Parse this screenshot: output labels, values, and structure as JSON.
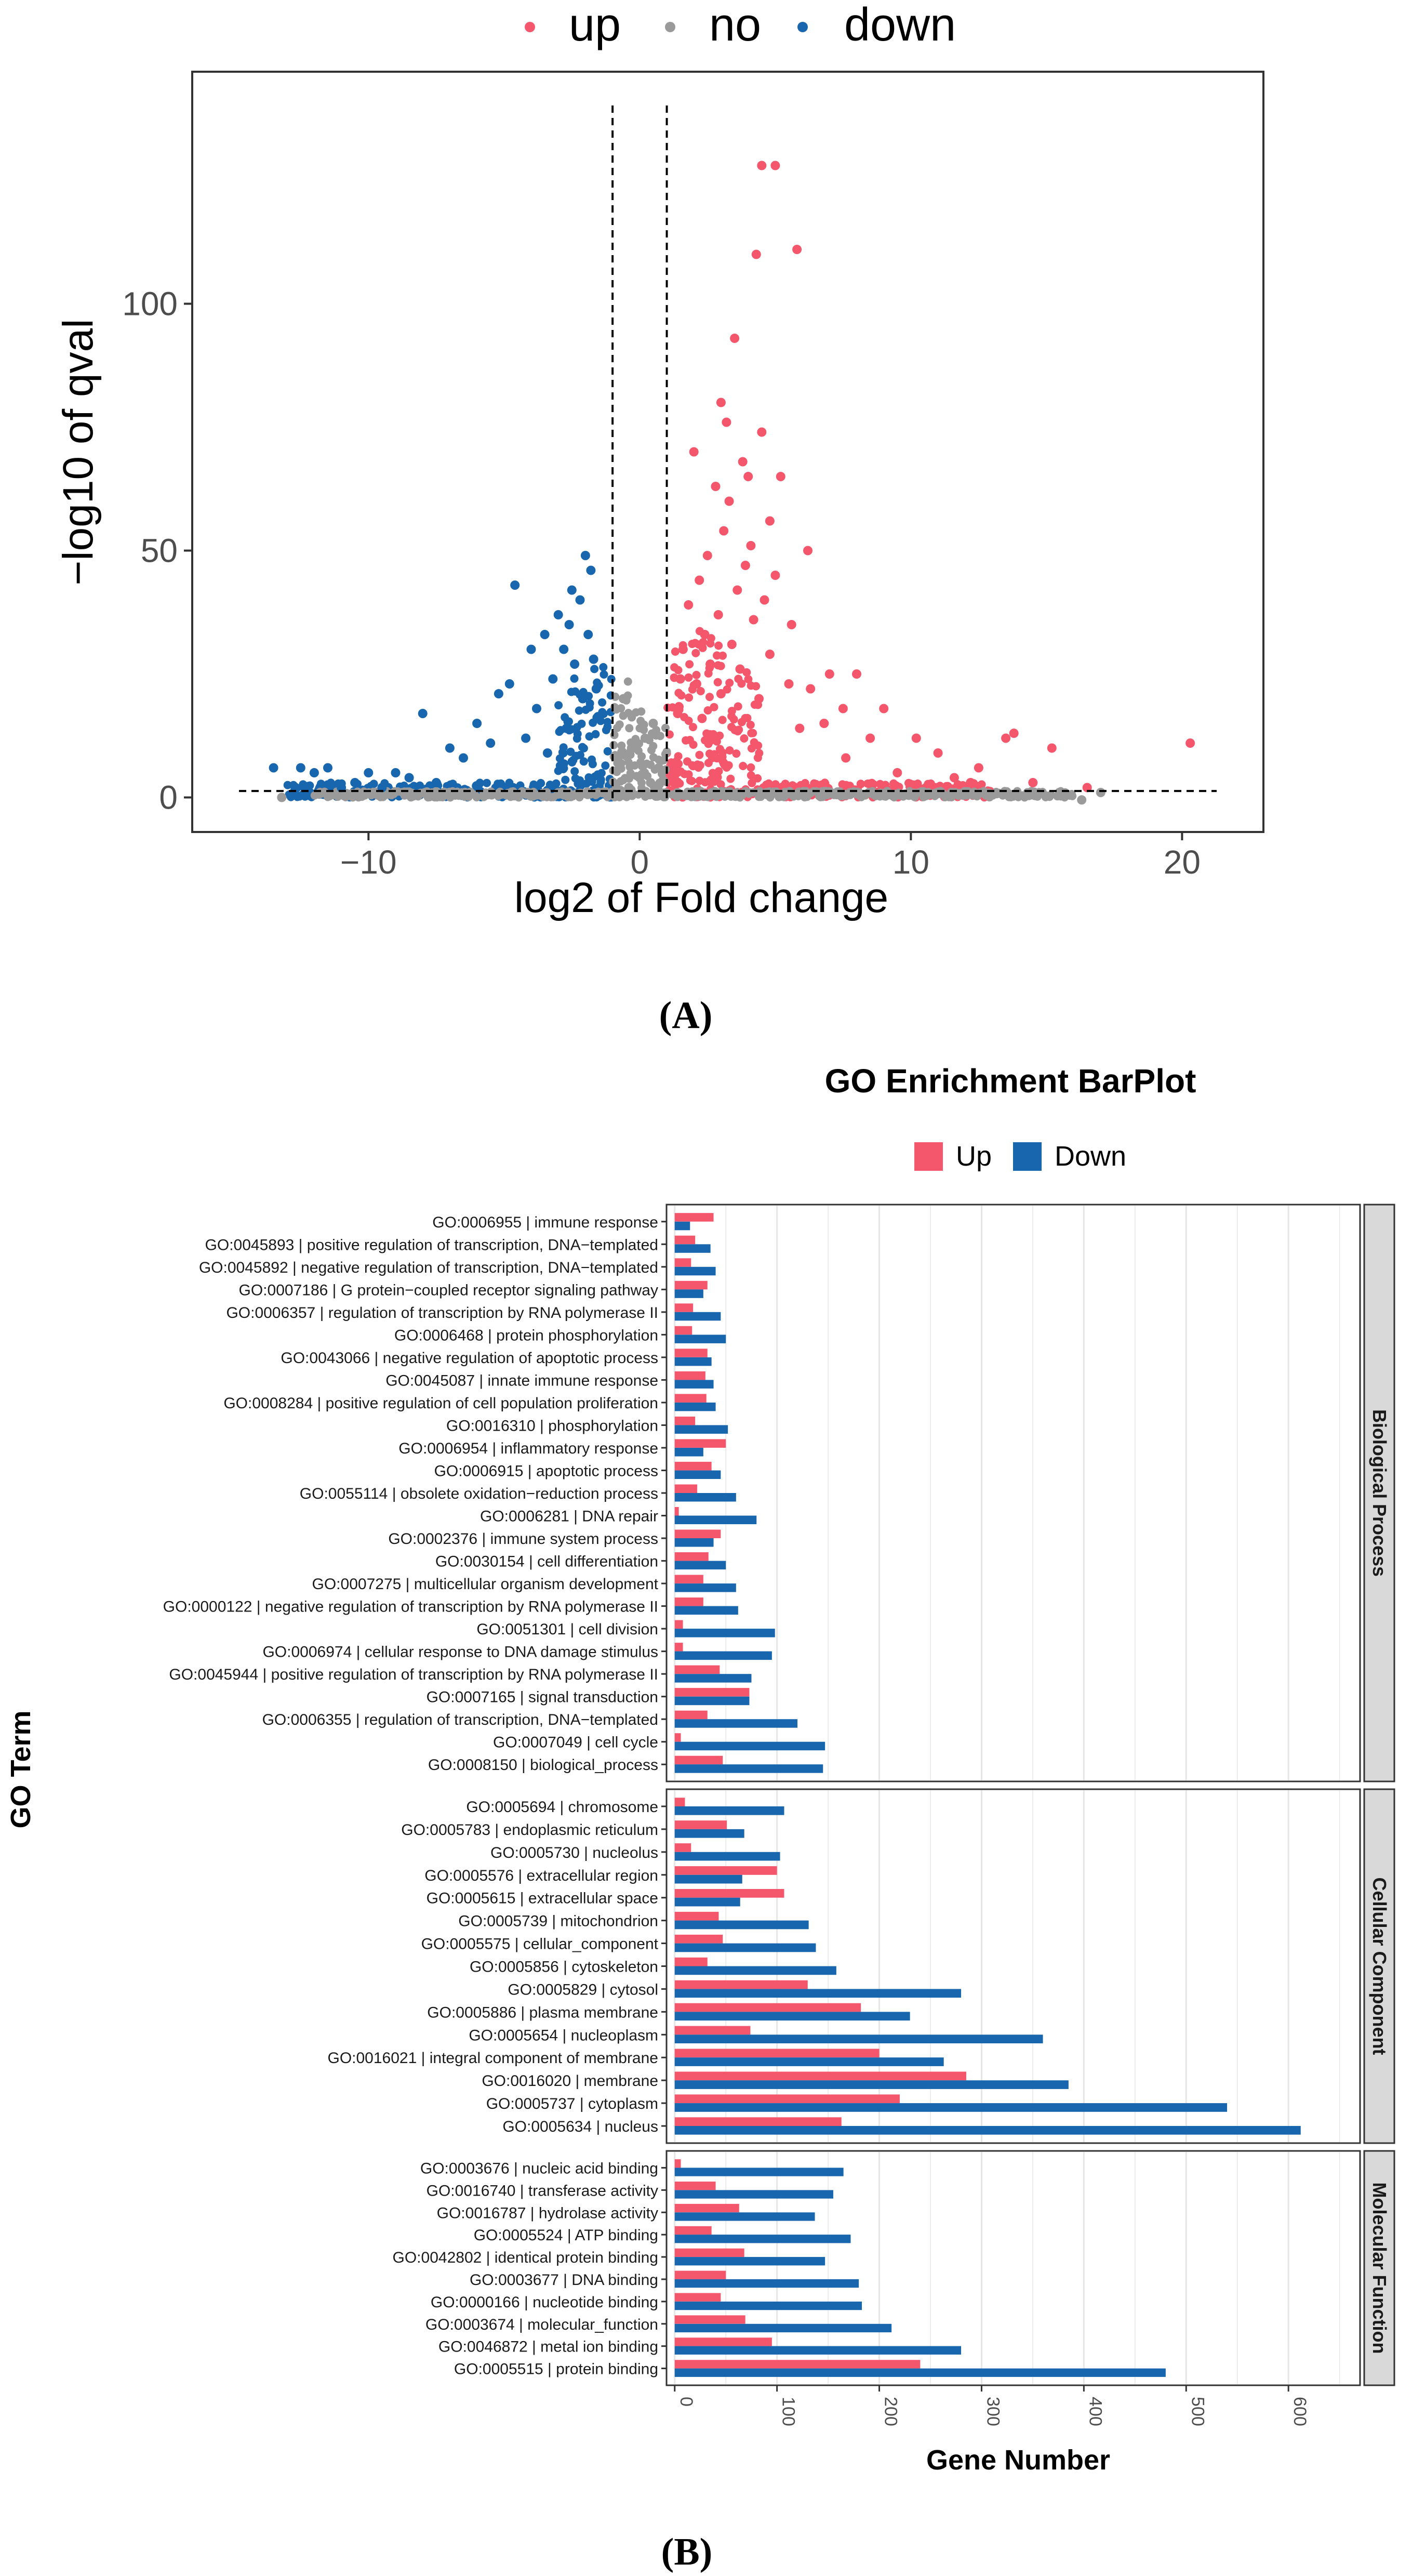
{
  "colors": {
    "up": "#F4566B",
    "no": "#9A9A9A",
    "down": "#1866AE",
    "panel_border": "#333333",
    "grid": "#E6E6E6",
    "strip_fill": "#D9D9D9"
  },
  "chart_data": [
    {
      "id": "A",
      "type": "scatter",
      "panel_label": "(A)",
      "title": "",
      "xlabel": "log2 of Fold change",
      "ylabel": "−log10 of qval",
      "xlim": [
        -16.5,
        23
      ],
      "ylim": [
        -7,
        147
      ],
      "x_ticks": [
        {
          "value": -10,
          "label": "−10"
        },
        {
          "value": 0,
          "label": "0"
        },
        {
          "value": 10,
          "label": "10"
        },
        {
          "value": 20,
          "label": "20"
        }
      ],
      "y_ticks": [
        {
          "value": 0,
          "label": "0"
        },
        {
          "value": 50,
          "label": "50"
        },
        {
          "value": 100,
          "label": "100"
        }
      ],
      "thresholds": {
        "x": [
          -1,
          1
        ],
        "y": [
          1.3
        ]
      },
      "legend": {
        "position": "top",
        "items": [
          {
            "key": "up",
            "label": "up"
          },
          {
            "key": "no",
            "label": "no"
          },
          {
            "key": "down",
            "label": "down"
          }
        ]
      },
      "series": [
        {
          "name": "up",
          "points": [
            [
              4.5,
              128
            ],
            [
              5.0,
              128
            ],
            [
              4.3,
              110
            ],
            [
              5.8,
              111
            ],
            [
              3.5,
              93
            ],
            [
              3.0,
              80
            ],
            [
              3.2,
              76
            ],
            [
              4.5,
              74
            ],
            [
              2.0,
              70
            ],
            [
              3.8,
              68
            ],
            [
              4.0,
              65
            ],
            [
              5.2,
              65
            ],
            [
              2.8,
              63
            ],
            [
              3.3,
              60
            ],
            [
              4.8,
              56
            ],
            [
              3.1,
              54
            ],
            [
              4.1,
              51
            ],
            [
              6.2,
              50
            ],
            [
              2.5,
              49
            ],
            [
              3.9,
              47
            ],
            [
              5.0,
              45
            ],
            [
              2.2,
              44
            ],
            [
              3.6,
              42
            ],
            [
              4.6,
              40
            ],
            [
              1.8,
              39
            ],
            [
              2.9,
              37
            ],
            [
              4.2,
              36
            ],
            [
              5.6,
              35
            ],
            [
              2.4,
              33
            ],
            [
              3.4,
              31
            ],
            [
              1.6,
              30
            ],
            [
              4.8,
              29
            ],
            [
              2.6,
              27
            ],
            [
              3.7,
              26
            ],
            [
              7.0,
              25
            ],
            [
              8.0,
              25
            ],
            [
              1.5,
              24
            ],
            [
              2.1,
              23
            ],
            [
              5.5,
              23
            ],
            [
              6.3,
              22
            ],
            [
              3.0,
              21
            ],
            [
              4.4,
              20
            ],
            [
              7.5,
              18
            ],
            [
              9.0,
              18
            ],
            [
              1.4,
              17
            ],
            [
              2.3,
              16
            ],
            [
              6.8,
              15
            ],
            [
              5.9,
              14
            ],
            [
              8.5,
              12
            ],
            [
              10.2,
              12
            ],
            [
              13.5,
              12
            ],
            [
              13.8,
              13
            ],
            [
              15.2,
              10
            ],
            [
              20.3,
              11
            ],
            [
              11.0,
              9
            ],
            [
              7.6,
              8
            ],
            [
              12.5,
              6
            ],
            [
              9.5,
              5
            ],
            [
              11.6,
              4
            ],
            [
              12.2,
              3
            ],
            [
              14.5,
              3
            ],
            [
              16.5,
              2
            ]
          ]
        },
        {
          "name": "down",
          "points": [
            [
              -2.0,
              49
            ],
            [
              -1.8,
              46
            ],
            [
              -4.6,
              43
            ],
            [
              -2.5,
              42
            ],
            [
              -2.2,
              40
            ],
            [
              -3.0,
              37
            ],
            [
              -2.6,
              35
            ],
            [
              -3.5,
              33
            ],
            [
              -1.9,
              33
            ],
            [
              -2.8,
              30
            ],
            [
              -4.0,
              30
            ],
            [
              -1.7,
              28
            ],
            [
              -2.4,
              27
            ],
            [
              -3.2,
              24
            ],
            [
              -4.8,
              23
            ],
            [
              -1.6,
              22
            ],
            [
              -5.2,
              21
            ],
            [
              -2.1,
              20
            ],
            [
              -3.8,
              18
            ],
            [
              -8.0,
              17
            ],
            [
              -1.5,
              16
            ],
            [
              -6.0,
              15
            ],
            [
              -2.7,
              14
            ],
            [
              -4.2,
              12
            ],
            [
              -5.5,
              11
            ],
            [
              -7.0,
              10
            ],
            [
              -3.4,
              9
            ],
            [
              -6.5,
              8
            ],
            [
              -12.5,
              6
            ],
            [
              -11.5,
              6
            ],
            [
              -10.0,
              5
            ],
            [
              -9.0,
              5
            ],
            [
              -13.5,
              6
            ],
            [
              -12.0,
              5
            ],
            [
              -8.5,
              4
            ],
            [
              -10.5,
              3
            ],
            [
              -7.5,
              3
            ],
            [
              -9.5,
              2
            ],
            [
              -11.0,
              2
            ]
          ]
        },
        {
          "name": "no",
          "points": [
            [
              -0.6,
              20
            ],
            [
              0.5,
              15
            ],
            [
              -0.3,
              10
            ],
            [
              0.2,
              12
            ],
            [
              -0.8,
              8
            ],
            [
              0.7,
              6
            ],
            [
              0.0,
              4
            ],
            [
              -0.4,
              2
            ],
            [
              0.4,
              3
            ],
            [
              15.5,
              1
            ],
            [
              16.3,
              -0.5
            ],
            [
              17.0,
              1
            ],
            [
              -13.2,
              0
            ]
          ]
        }
      ],
      "density_bands": [
        {
          "series": "up",
          "x_range": [
            1.0,
            4.5
          ],
          "y_max": 35
        },
        {
          "series": "down",
          "x_range": [
            -3.0,
            -1.0
          ],
          "y_max": 30
        },
        {
          "series": "up",
          "x_range": [
            4.5,
            13.0
          ],
          "y_max": 3
        },
        {
          "series": "down",
          "x_range": [
            -13.0,
            -3.0
          ],
          "y_max": 3
        },
        {
          "series": "no",
          "x_range": [
            -12.0,
            16.0
          ],
          "y_max": 1.3
        },
        {
          "series": "no",
          "x_range": [
            -1.0,
            1.0
          ],
          "y_max": 25
        }
      ]
    },
    {
      "id": "B",
      "type": "bar",
      "orientation": "horizontal",
      "panel_label": "(B)",
      "title": "GO Enrichment BarPlot",
      "xlabel": "Gene Number",
      "ylabel": "GO Term",
      "xlim": [
        -8,
        670
      ],
      "x_ticks": [
        0,
        100,
        200,
        300,
        400,
        500,
        600
      ],
      "legend": {
        "position": "top",
        "items": [
          {
            "key": "up",
            "label": "Up"
          },
          {
            "key": "down",
            "label": "Down"
          }
        ]
      },
      "facets": [
        {
          "name": "Biological Process",
          "terms": [
            {
              "label": "GO:0006955 | immune response",
              "up": 38,
              "down": 15
            },
            {
              "label": "GO:0045893 | positive regulation of transcription, DNA−templated",
              "up": 20,
              "down": 35
            },
            {
              "label": "GO:0045892 | negative regulation of transcription, DNA−templated",
              "up": 16,
              "down": 40
            },
            {
              "label": "GO:0007186 | G protein−coupled receptor signaling pathway",
              "up": 32,
              "down": 28
            },
            {
              "label": "GO:0006357 | regulation of transcription by RNA polymerase II",
              "up": 18,
              "down": 45
            },
            {
              "label": "GO:0006468 | protein phosphorylation",
              "up": 17,
              "down": 50
            },
            {
              "label": "GO:0043066 | negative regulation of apoptotic process",
              "up": 32,
              "down": 36
            },
            {
              "label": "GO:0045087 | innate immune response",
              "up": 30,
              "down": 38
            },
            {
              "label": "GO:0008284 | positive regulation of cell population proliferation",
              "up": 31,
              "down": 40
            },
            {
              "label": "GO:0016310 | phosphorylation",
              "up": 20,
              "down": 52
            },
            {
              "label": "GO:0006954 | inflammatory response",
              "up": 50,
              "down": 28
            },
            {
              "label": "GO:0006915 | apoptotic process",
              "up": 36,
              "down": 45
            },
            {
              "label": "GO:0055114 | obsolete oxidation−reduction process",
              "up": 22,
              "down": 60
            },
            {
              "label": "GO:0006281 | DNA repair",
              "up": 4,
              "down": 80
            },
            {
              "label": "GO:0002376 | immune system process",
              "up": 45,
              "down": 38
            },
            {
              "label": "GO:0030154 | cell differentiation",
              "up": 33,
              "down": 50
            },
            {
              "label": "GO:0007275 | multicellular organism development",
              "up": 28,
              "down": 60
            },
            {
              "label": "GO:0000122 | negative regulation of transcription by RNA polymerase II",
              "up": 28,
              "down": 62
            },
            {
              "label": "GO:0051301 | cell division",
              "up": 8,
              "down": 98
            },
            {
              "label": "GO:0006974 | cellular response to DNA damage stimulus",
              "up": 8,
              "down": 95
            },
            {
              "label": "GO:0045944 | positive regulation of transcription by RNA polymerase II",
              "up": 44,
              "down": 75
            },
            {
              "label": "GO:0007165 | signal transduction",
              "up": 73,
              "down": 73
            },
            {
              "label": "GO:0006355 | regulation of transcription, DNA−templated",
              "up": 32,
              "down": 120
            },
            {
              "label": "GO:0007049 | cell cycle",
              "up": 6,
              "down": 147
            },
            {
              "label": "GO:0008150 | biological_process",
              "up": 47,
              "down": 145
            }
          ]
        },
        {
          "name": "Cellular Component",
          "terms": [
            {
              "label": "GO:0005694 | chromosome",
              "up": 10,
              "down": 107
            },
            {
              "label": "GO:0005783 | endoplasmic reticulum",
              "up": 51,
              "down": 68
            },
            {
              "label": "GO:0005730 | nucleolus",
              "up": 16,
              "down": 103
            },
            {
              "label": "GO:0005576 | extracellular region",
              "up": 100,
              "down": 66
            },
            {
              "label": "GO:0005615 | extracellular space",
              "up": 107,
              "down": 64
            },
            {
              "label": "GO:0005739 | mitochondrion",
              "up": 43,
              "down": 131
            },
            {
              "label": "GO:0005575 | cellular_component",
              "up": 47,
              "down": 138
            },
            {
              "label": "GO:0005856 | cytoskeleton",
              "up": 32,
              "down": 158
            },
            {
              "label": "GO:0005829 | cytosol",
              "up": 130,
              "down": 280
            },
            {
              "label": "GO:0005886 | plasma membrane",
              "up": 182,
              "down": 230
            },
            {
              "label": "GO:0005654 | nucleoplasm",
              "up": 74,
              "down": 360
            },
            {
              "label": "GO:0016021 | integral component of membrane",
              "up": 200,
              "down": 263
            },
            {
              "label": "GO:0016020 | membrane",
              "up": 285,
              "down": 385
            },
            {
              "label": "GO:0005737 | cytoplasm",
              "up": 220,
              "down": 540
            },
            {
              "label": "GO:0005634 | nucleus",
              "up": 163,
              "down": 612
            }
          ]
        },
        {
          "name": "Molecular Function",
          "terms": [
            {
              "label": "GO:0003676 | nucleic acid binding",
              "up": 6,
              "down": 165
            },
            {
              "label": "GO:0016740 | transferase activity",
              "up": 40,
              "down": 155
            },
            {
              "label": "GO:0016787 | hydrolase activity",
              "up": 63,
              "down": 137
            },
            {
              "label": "GO:0005524 | ATP binding",
              "up": 36,
              "down": 172
            },
            {
              "label": "GO:0042802 | identical protein binding",
              "up": 68,
              "down": 147
            },
            {
              "label": "GO:0003677 | DNA binding",
              "up": 50,
              "down": 180
            },
            {
              "label": "GO:0000166 | nucleotide binding",
              "up": 45,
              "down": 183
            },
            {
              "label": "GO:0003674 | molecular_function",
              "up": 69,
              "down": 212
            },
            {
              "label": "GO:0046872 | metal ion binding",
              "up": 95,
              "down": 280
            },
            {
              "label": "GO:0005515 | protein binding",
              "up": 240,
              "down": 480
            }
          ]
        }
      ]
    }
  ]
}
